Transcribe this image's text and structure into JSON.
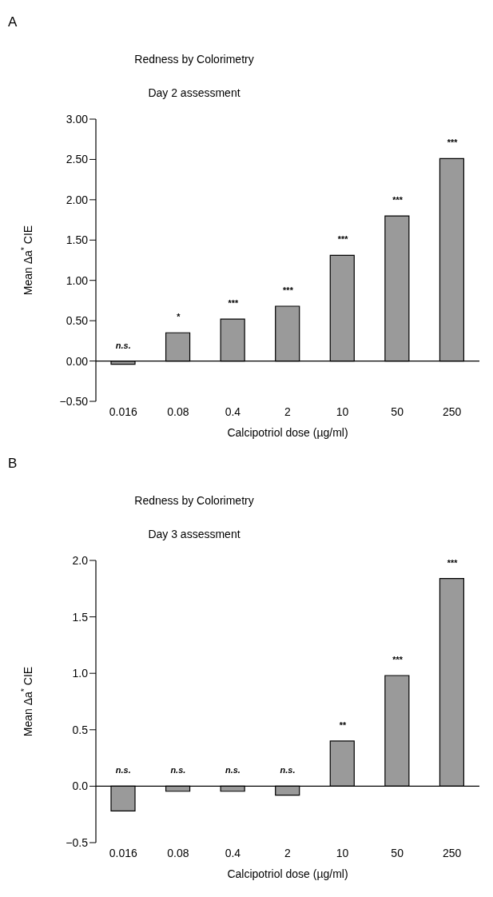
{
  "chart_data": [
    {
      "type": "bar",
      "title": "Redness by Colorimetry",
      "subtitle": "Day 2 assessment",
      "xlabel": "Calcipotriol dose (µg/ml)",
      "ylabel": "Mean Δa$^{*}$ CIE",
      "categories": [
        "0.016",
        "0.08",
        "0.4",
        "2",
        "10",
        "50",
        "250"
      ],
      "values": [
        -0.04,
        0.35,
        0.52,
        0.68,
        1.31,
        1.8,
        2.51
      ],
      "color": "#9a9a9a",
      "ylim": [
        -0.5,
        3.0
      ],
      "yticks": [
        {
          "value": -0.5,
          "label": "−0.50"
        },
        {
          "value": 0,
          "label": "0.00"
        },
        {
          "value": 0.5,
          "label": "0.50"
        },
        {
          "value": 1,
          "label": "1.00"
        },
        {
          "value": 1.5,
          "label": "1.50"
        },
        {
          "value": 2,
          "label": "2.00"
        },
        {
          "value": 2.5,
          "label": "2.50"
        },
        {
          "value": 3,
          "label": "3.00"
        }
      ],
      "grid": false,
      "legend": false,
      "ref_lines": [
        {
          "axis": "y",
          "value": 0
        }
      ],
      "annotations": [
        "A",
        {
          "text": "n.s.",
          "x": "0.016",
          "y": 0
        },
        {
          "text": "*",
          "x": "0.08",
          "y": 0.35
        },
        {
          "text": "***",
          "x": "0.4",
          "y": 0.52
        },
        {
          "text": "***",
          "x": "2",
          "y": 0.68
        },
        {
          "text": "***",
          "x": "10",
          "y": 1.31
        },
        {
          "text": "***",
          "x": "50",
          "y": 1.8
        },
        {
          "text": "***",
          "x": "250",
          "y": 2.51
        }
      ]
    },
    {
      "type": "bar",
      "title": "Redness by Colorimetry",
      "subtitle": "Day 3 assessment",
      "xlabel": "Calcipotriol dose (µg/ml)",
      "ylabel": "Mean Δa$^{*}$ CIE",
      "categories": [
        "0.016",
        "0.08",
        "0.4",
        "2",
        "10",
        "50",
        "250"
      ],
      "values": [
        -0.22,
        -0.045,
        -0.045,
        -0.08,
        0.4,
        0.98,
        1.84
      ],
      "color": "#9a9a9a",
      "ylim": [
        -0.5,
        2.0
      ],
      "yticks": [
        {
          "value": -0.5,
          "label": "−0.5"
        },
        {
          "value": 0,
          "label": "0.0"
        },
        {
          "value": 0.5,
          "label": "0.5"
        },
        {
          "value": 1,
          "label": "1.0"
        },
        {
          "value": 1.5,
          "label": "1.5"
        },
        {
          "value": 2,
          "label": "2.0"
        }
      ],
      "grid": false,
      "legend": false,
      "ref_lines": [
        {
          "axis": "y",
          "value": 0
        }
      ],
      "annotations": [
        "B",
        {
          "text": "n.s.",
          "x": "0.016",
          "y": 0
        },
        {
          "text": "n.s.",
          "x": "0.08",
          "y": 0
        },
        {
          "text": "n.s.",
          "x": "0.4",
          "y": 0
        },
        {
          "text": "n.s.",
          "x": "2",
          "y": 0
        },
        {
          "text": "**",
          "x": "10",
          "y": 0.4
        },
        {
          "text": "***",
          "x": "50",
          "y": 0.98
        },
        {
          "text": "***",
          "x": "250",
          "y": 1.84
        }
      ]
    }
  ]
}
